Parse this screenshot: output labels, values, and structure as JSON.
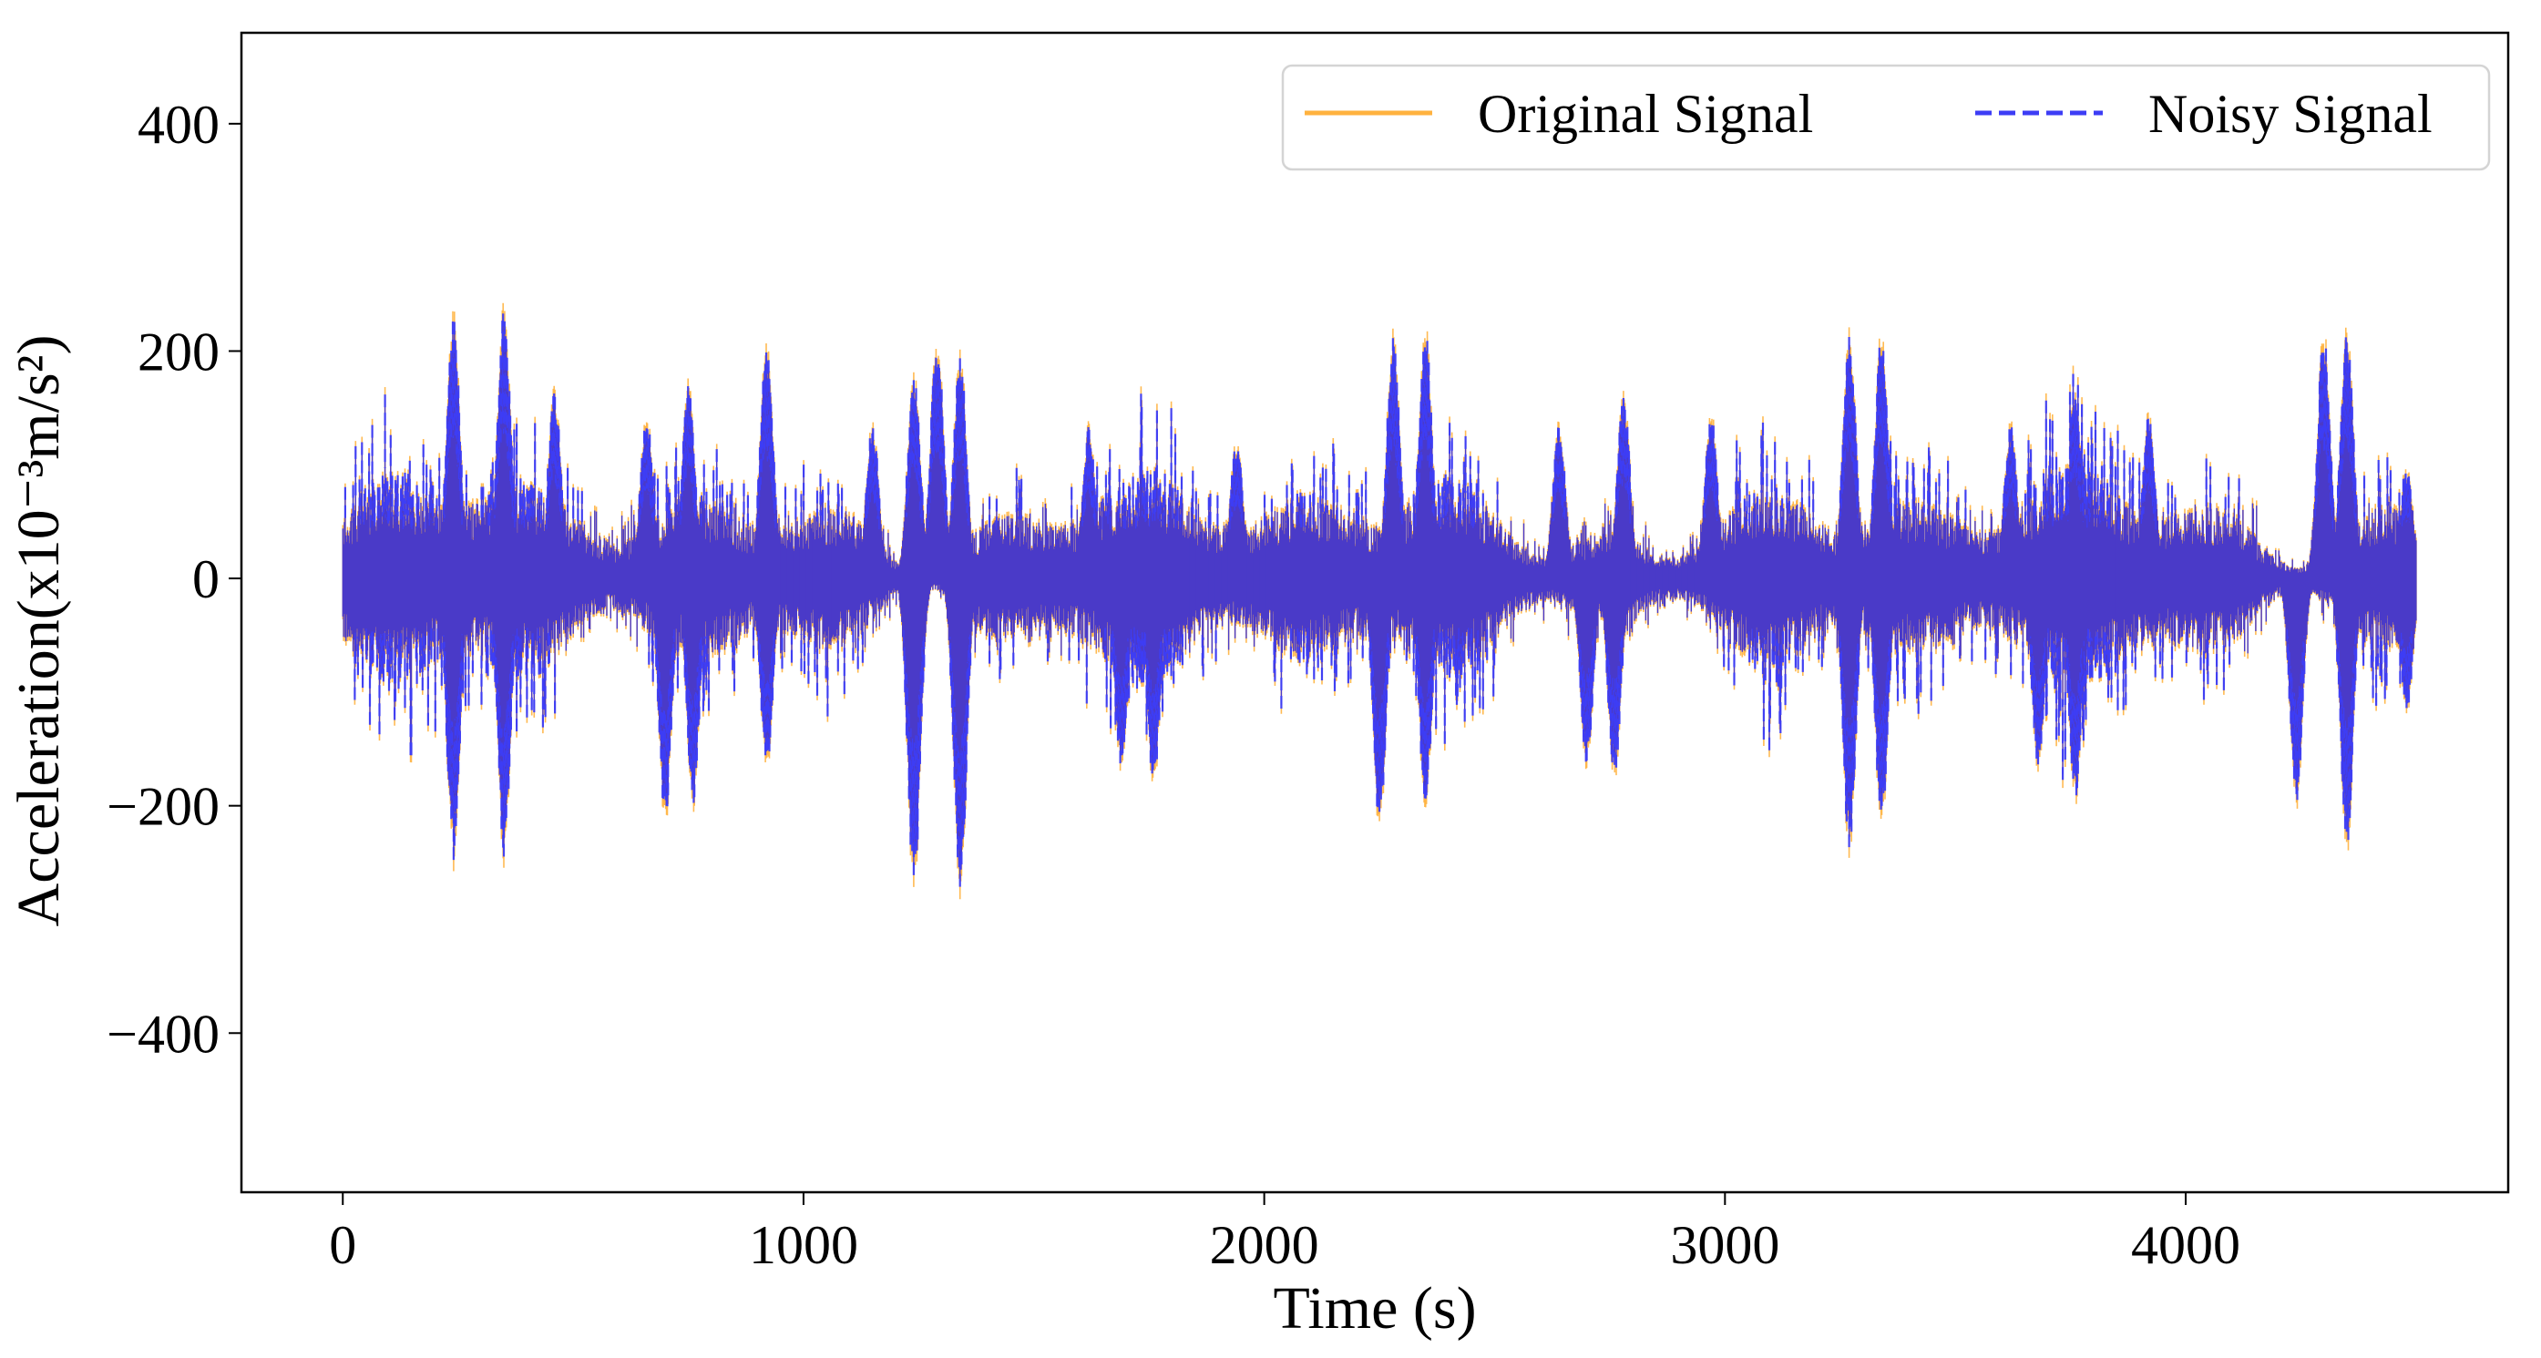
{
  "chart_data": {
    "type": "line",
    "title": "",
    "xlabel": "Time (s)",
    "ylabel": "Acceleration(x10⁻³m/s²)",
    "xlim": [
      -220,
      4700
    ],
    "ylim": [
      -540,
      480
    ],
    "xticks": [
      0,
      1000,
      2000,
      3000,
      4000
    ],
    "xtick_labels": [
      "0",
      "1000",
      "2000",
      "3000",
      "4000"
    ],
    "yticks": [
      -400,
      -200,
      0,
      200,
      400
    ],
    "ytick_labels": [
      "−400",
      "−200",
      "0",
      "200",
      "400"
    ],
    "grid": false,
    "legend": {
      "position": "upper right",
      "ncol": 2,
      "entries": [
        {
          "label": "Original Signal",
          "color": "#FFB23F",
          "linestyle": "solid"
        },
        {
          "label": "Noisy Signal",
          "color": "#3D3DF5",
          "linestyle": "dashed"
        }
      ]
    },
    "x_range_data": [
      0,
      4500
    ],
    "baseline_amplitude": 45,
    "series": [
      {
        "name": "Original Signal",
        "color": "#FFB23F",
        "linestyle": "solid",
        "description": "Dense vibration acceleration signal, core band approx ±50, spikes up to ±280",
        "peaks_positive": [
          {
            "t": 240,
            "v": 232
          },
          {
            "t": 350,
            "v": 238
          },
          {
            "t": 460,
            "v": 165
          },
          {
            "t": 660,
            "v": 145
          },
          {
            "t": 750,
            "v": 170
          },
          {
            "t": 920,
            "v": 205
          },
          {
            "t": 1150,
            "v": 135
          },
          {
            "t": 1240,
            "v": 180
          },
          {
            "t": 1290,
            "v": 215
          },
          {
            "t": 1340,
            "v": 200
          },
          {
            "t": 1620,
            "v": 135
          },
          {
            "t": 1940,
            "v": 120
          },
          {
            "t": 2280,
            "v": 215
          },
          {
            "t": 2350,
            "v": 218
          },
          {
            "t": 2640,
            "v": 135
          },
          {
            "t": 2780,
            "v": 160
          },
          {
            "t": 2970,
            "v": 145
          },
          {
            "t": 3270,
            "v": 215
          },
          {
            "t": 3340,
            "v": 218
          },
          {
            "t": 3620,
            "v": 135
          },
          {
            "t": 3760,
            "v": 165
          },
          {
            "t": 3920,
            "v": 145
          },
          {
            "t": 4300,
            "v": 218
          },
          {
            "t": 4350,
            "v": 222
          },
          {
            "t": 4480,
            "v": 95
          }
        ],
        "peaks_negative": [
          {
            "t": 240,
            "v": -248
          },
          {
            "t": 350,
            "v": -245
          },
          {
            "t": 700,
            "v": -215
          },
          {
            "t": 760,
            "v": -200
          },
          {
            "t": 920,
            "v": -170
          },
          {
            "t": 1240,
            "v": -275
          },
          {
            "t": 1340,
            "v": -278
          },
          {
            "t": 1690,
            "v": -170
          },
          {
            "t": 1760,
            "v": -185
          },
          {
            "t": 2250,
            "v": -222
          },
          {
            "t": 2350,
            "v": -200
          },
          {
            "t": 2700,
            "v": -165
          },
          {
            "t": 2760,
            "v": -175
          },
          {
            "t": 3270,
            "v": -243
          },
          {
            "t": 3340,
            "v": -218
          },
          {
            "t": 3680,
            "v": -165
          },
          {
            "t": 3760,
            "v": -195
          },
          {
            "t": 4240,
            "v": -200
          },
          {
            "t": 4350,
            "v": -237
          },
          {
            "t": 4480,
            "v": -115
          }
        ]
      },
      {
        "name": "Noisy Signal",
        "color": "#3D3DF5",
        "linestyle": "dashed",
        "description": "Original signal with added noise; nearly overlaps original, same envelope"
      }
    ]
  },
  "colors": {
    "overlap_fill": "#4A3AC8",
    "original": "#FFB23F",
    "noisy": "#3D3DF5",
    "frame": "#000000"
  }
}
